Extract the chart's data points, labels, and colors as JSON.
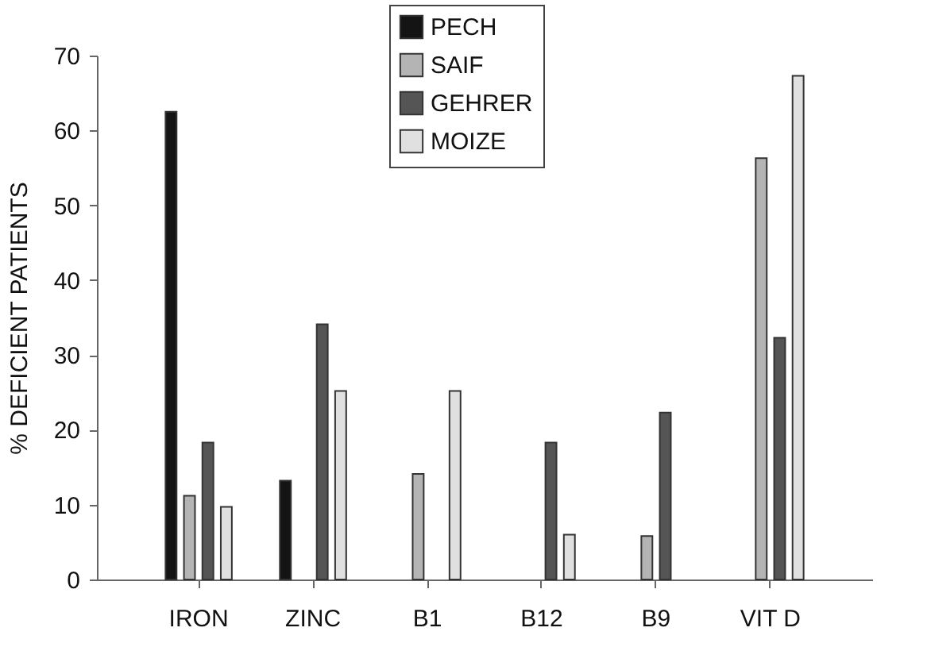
{
  "chart_data": {
    "type": "bar",
    "ylabel": "% DEFICIENT PATIENTS",
    "categories": [
      "IRON",
      "ZINC",
      "B1",
      "B12",
      "B9",
      "VIT D"
    ],
    "series": [
      {
        "name": "PECH",
        "color": "#141414",
        "values": [
          62.5,
          13.2,
          null,
          null,
          null,
          null
        ]
      },
      {
        "name": "SAIF",
        "color": "#b4b4b4",
        "values": [
          11.2,
          null,
          14.1,
          null,
          5.8,
          56.3
        ]
      },
      {
        "name": "GEHRER",
        "color": "#555555",
        "values": [
          18.3,
          34.1,
          null,
          18.3,
          22.3,
          32.3
        ]
      },
      {
        "name": "MOIZE",
        "color": "#e0e0e0",
        "values": [
          9.7,
          25.2,
          25.2,
          6.0,
          null,
          67.3
        ]
      }
    ],
    "ylim": [
      0,
      70
    ],
    "yticks": [
      0,
      10,
      20,
      30,
      40,
      50,
      60,
      70
    ],
    "grid": false,
    "legend": "top"
  }
}
